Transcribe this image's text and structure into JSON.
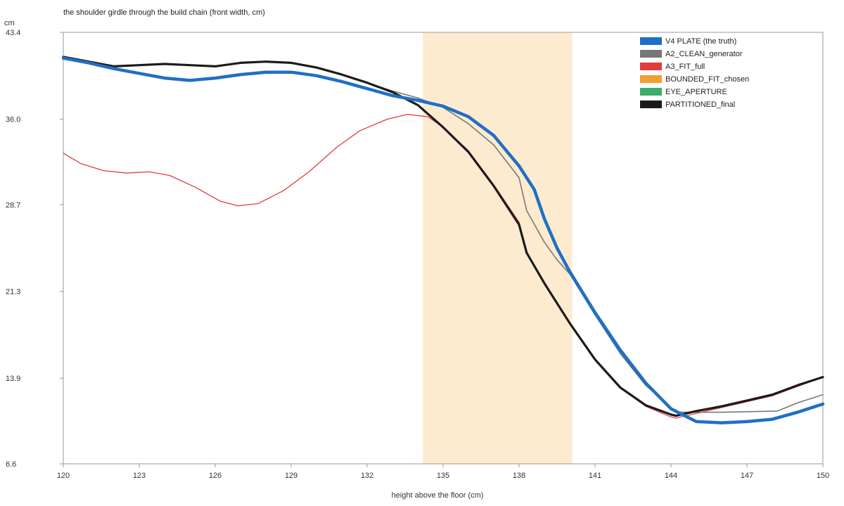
{
  "chart_data": {
    "type": "line",
    "title": "the shoulder girdle through the build chain (front width, cm)",
    "xlabel": "height above the floor (cm)",
    "ylabel": "cm",
    "xlim": [
      120,
      150
    ],
    "ylim": [
      6.6,
      43.4
    ],
    "x_ticks": [
      "120",
      "123",
      "126",
      "129",
      "132",
      "135",
      "138",
      "141",
      "144",
      "147",
      "150"
    ],
    "y_ticks": [
      "6.6",
      "13.9",
      "21.3",
      "28.7",
      "36.0",
      "43.4"
    ],
    "grid": false,
    "legend_position": "top-right",
    "highlight_band": {
      "x_start": 134.2,
      "x_end": 140.1,
      "color": "#fdebd0"
    },
    "series": [
      {
        "name": "V4 PLATE (the truth)",
        "color": "#1f6fc5",
        "width": 4.5,
        "points": [
          [
            120,
            41.2
          ],
          [
            121,
            40.8
          ],
          [
            122,
            40.3
          ],
          [
            123,
            39.9
          ],
          [
            124,
            39.5
          ],
          [
            125,
            39.3
          ],
          [
            126,
            39.5
          ],
          [
            127,
            39.8
          ],
          [
            128,
            40.0
          ],
          [
            129,
            40.0
          ],
          [
            130,
            39.7
          ],
          [
            131,
            39.2
          ],
          [
            132,
            38.6
          ],
          [
            133,
            38.0
          ],
          [
            134,
            37.6
          ],
          [
            135,
            37.1
          ],
          [
            136,
            36.2
          ],
          [
            137,
            34.6
          ],
          [
            138,
            32.0
          ],
          [
            138.6,
            30.0
          ],
          [
            139,
            27.5
          ],
          [
            139.5,
            25.0
          ],
          [
            140,
            23.0
          ],
          [
            141,
            19.5
          ],
          [
            142,
            16.3
          ],
          [
            143,
            13.5
          ],
          [
            144,
            11.3
          ],
          [
            145,
            10.2
          ],
          [
            146,
            10.1
          ],
          [
            147,
            10.2
          ],
          [
            148,
            10.4
          ],
          [
            149,
            11.0
          ],
          [
            150,
            11.7
          ]
        ]
      },
      {
        "name": "A2_CLEAN_generator",
        "color": "#777777",
        "width": 1.6,
        "points": [
          [
            120,
            41.3
          ],
          [
            121,
            40.9
          ],
          [
            122,
            40.5
          ],
          [
            123,
            40.6
          ],
          [
            124,
            40.7
          ],
          [
            125,
            40.6
          ],
          [
            126,
            40.5
          ],
          [
            127,
            40.8
          ],
          [
            128,
            40.9
          ],
          [
            129,
            40.8
          ],
          [
            130,
            40.4
          ],
          [
            131,
            39.8
          ],
          [
            132,
            39.1
          ],
          [
            133,
            38.4
          ],
          [
            134,
            37.8
          ],
          [
            135,
            37.0
          ],
          [
            136,
            35.6
          ],
          [
            137,
            33.8
          ],
          [
            138,
            31.0
          ],
          [
            138.3,
            28.2
          ],
          [
            139,
            25.5
          ],
          [
            139.5,
            24.0
          ],
          [
            140,
            22.8
          ],
          [
            141,
            19.3
          ],
          [
            142,
            16.0
          ],
          [
            143,
            13.3
          ],
          [
            144.2,
            11.0
          ],
          [
            146,
            11.0
          ],
          [
            148.2,
            11.1
          ],
          [
            149,
            11.8
          ],
          [
            150,
            12.5
          ]
        ]
      },
      {
        "name": "A3_FIT_full",
        "color": "#e03c3c",
        "width": 1.3,
        "points": [
          [
            120,
            33.1
          ],
          [
            120.7,
            32.2
          ],
          [
            121.6,
            31.6
          ],
          [
            122.5,
            31.4
          ],
          [
            123.4,
            31.5
          ],
          [
            124.2,
            31.2
          ],
          [
            125.2,
            30.2
          ],
          [
            126.2,
            29.0
          ],
          [
            126.9,
            28.6
          ],
          [
            127.7,
            28.8
          ],
          [
            128.7,
            29.9
          ],
          [
            129.7,
            31.5
          ],
          [
            130.8,
            33.6
          ],
          [
            131.7,
            35.0
          ],
          [
            132.8,
            36.0
          ],
          [
            133.6,
            36.4
          ],
          [
            134.4,
            36.2
          ],
          [
            135,
            35.3
          ],
          [
            136,
            33.3
          ],
          [
            137,
            30.4
          ],
          [
            138,
            27.2
          ],
          [
            138.3,
            24.6
          ],
          [
            139,
            22.0
          ],
          [
            140,
            18.6
          ],
          [
            141,
            15.5
          ],
          [
            142,
            13.1
          ],
          [
            143,
            11.5
          ],
          [
            144,
            10.6
          ],
          [
            144.2,
            10.5
          ],
          [
            145,
            10.9
          ],
          [
            146,
            11.4
          ],
          [
            147,
            11.9
          ],
          [
            148,
            12.4
          ],
          [
            149,
            13.2
          ],
          [
            150,
            14.0
          ]
        ]
      },
      {
        "name": "BOUNDED_FIT_chosen",
        "color": "#f0a030",
        "width": 3,
        "points": []
      },
      {
        "name": "EYE_APERTURE",
        "color": "#3cad6e",
        "width": 3,
        "points": []
      },
      {
        "name": "PARTITIONED_final",
        "color": "#1b1b1b",
        "width": 3.2,
        "points": [
          [
            120,
            41.3
          ],
          [
            121,
            40.9
          ],
          [
            122,
            40.5
          ],
          [
            123,
            40.6
          ],
          [
            124,
            40.7
          ],
          [
            125,
            40.6
          ],
          [
            126,
            40.5
          ],
          [
            127,
            40.8
          ],
          [
            128,
            40.9
          ],
          [
            129,
            40.8
          ],
          [
            130,
            40.4
          ],
          [
            131,
            39.8
          ],
          [
            132,
            39.1
          ],
          [
            133,
            38.3
          ],
          [
            134,
            37.2
          ],
          [
            135,
            35.3
          ],
          [
            136,
            33.2
          ],
          [
            137,
            30.3
          ],
          [
            138,
            27.0
          ],
          [
            138.3,
            24.6
          ],
          [
            139,
            22.0
          ],
          [
            140,
            18.6
          ],
          [
            141,
            15.5
          ],
          [
            142,
            13.1
          ],
          [
            143,
            11.6
          ],
          [
            144,
            10.8
          ],
          [
            144.2,
            10.7
          ],
          [
            145,
            11.1
          ],
          [
            146,
            11.5
          ],
          [
            147,
            12.0
          ],
          [
            148,
            12.5
          ],
          [
            149,
            13.3
          ],
          [
            150,
            14.0
          ]
        ]
      }
    ]
  }
}
